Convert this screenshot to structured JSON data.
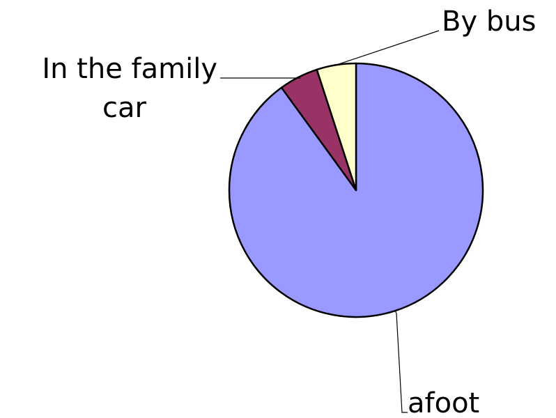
{
  "chart_data": {
    "type": "pie",
    "slices": [
      {
        "label": "afoot",
        "label_lines": [
          "afoot"
        ],
        "value": 90,
        "color": "#9999ff"
      },
      {
        "label": "In the family car",
        "label_lines": [
          "In the family",
          "car"
        ],
        "value": 5,
        "color": "#993366"
      },
      {
        "label": "By bus",
        "label_lines": [
          "By bus"
        ],
        "value": 5,
        "color": "#ffffcc"
      }
    ],
    "start": "12 o'clock",
    "direction": "clockwise",
    "legend": "none (slice labels with leader lines)"
  }
}
